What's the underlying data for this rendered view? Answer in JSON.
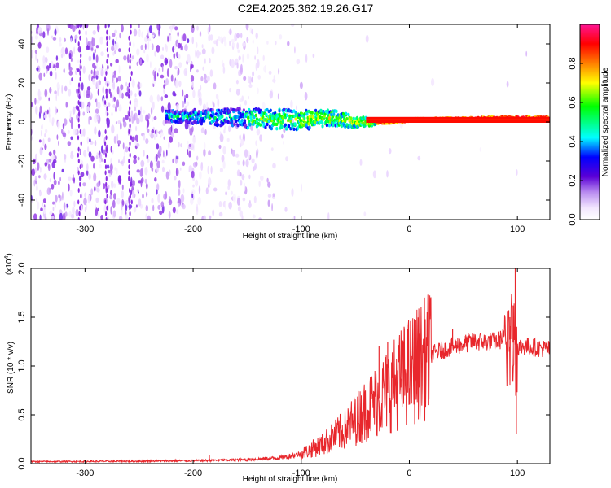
{
  "title": "C2E4.2025.362.19.26.G17",
  "chart_data": [
    {
      "type": "heatmap",
      "name": "spectrogram",
      "xlabel": "Height of straight line (km)",
      "ylabel": "Frequency (Hz)",
      "xlim": [
        -350,
        130
      ],
      "ylim": [
        -50,
        50
      ],
      "xticks": [
        -300,
        -200,
        -100,
        0,
        100
      ],
      "yticks": [
        40,
        20,
        0,
        -20,
        -40
      ],
      "colorbar": {
        "label": "Normalized spectral amplitude",
        "range": [
          0,
          1
        ],
        "ticks": [
          "0.0",
          "0.2",
          "0.4",
          "0.6",
          "0.8"
        ],
        "colors": [
          "#ffffff",
          "#e8d0ff",
          "#8a2be2",
          "#0000ff",
          "#00ffff",
          "#00ff00",
          "#ffff00",
          "#ff8000",
          "#ff0000",
          "#ff1493"
        ]
      },
      "signal_band": {
        "description_free": true,
        "center_freq": [
          [
            -220,
            3
          ],
          [
            -150,
            2
          ],
          [
            -100,
            1
          ],
          [
            -70,
            2
          ],
          [
            -50,
            0
          ],
          [
            -30,
            0
          ],
          [
            0,
            1
          ],
          [
            50,
            1.5
          ],
          [
            90,
            2
          ],
          [
            130,
            2
          ]
        ],
        "halfwidth": [
          [
            -220,
            3
          ],
          [
            -150,
            5
          ],
          [
            -100,
            5
          ],
          [
            -70,
            4
          ],
          [
            -50,
            3
          ],
          [
            -30,
            1.5
          ],
          [
            0,
            1
          ],
          [
            130,
            1
          ]
        ]
      }
    },
    {
      "type": "line",
      "name": "snr",
      "xlabel": "Height of straight line (km)",
      "ylabel": "SNR (10 * v/v)",
      "scale_label": "(x10",
      "scale_exp": "4",
      "scale_close": ")",
      "xlim": [
        -350,
        130
      ],
      "ylim": [
        0,
        2.0
      ],
      "xticks": [
        -300,
        -200,
        -100,
        0,
        100
      ],
      "yticks": [
        "0.0",
        "0.5",
        "1.0",
        "1.5",
        "2.0"
      ],
      "color": "#e8272c",
      "envelope": [
        [
          -350,
          0.02
        ],
        [
          -250,
          0.025
        ],
        [
          -200,
          0.03
        ],
        [
          -150,
          0.04
        ],
        [
          -120,
          0.06
        ],
        [
          -100,
          0.1
        ],
        [
          -80,
          0.2
        ],
        [
          -60,
          0.35
        ],
        [
          -40,
          0.55
        ],
        [
          -20,
          0.75
        ],
        [
          0,
          0.95
        ],
        [
          20,
          1.12
        ],
        [
          40,
          1.2
        ],
        [
          60,
          1.25
        ],
        [
          80,
          1.25
        ],
        [
          90,
          1.3
        ],
        [
          100,
          1.2
        ],
        [
          110,
          1.2
        ],
        [
          130,
          1.17
        ]
      ],
      "spikes": [
        [
          -185,
          0.09
        ],
        [
          -28,
          1.2
        ],
        [
          -20,
          1.25
        ],
        [
          -8,
          0.78
        ],
        [
          40,
          1.38
        ],
        [
          93,
          1.5
        ],
        [
          96,
          1.62
        ],
        [
          98,
          2.0
        ],
        [
          99,
          0.3
        ]
      ]
    }
  ]
}
